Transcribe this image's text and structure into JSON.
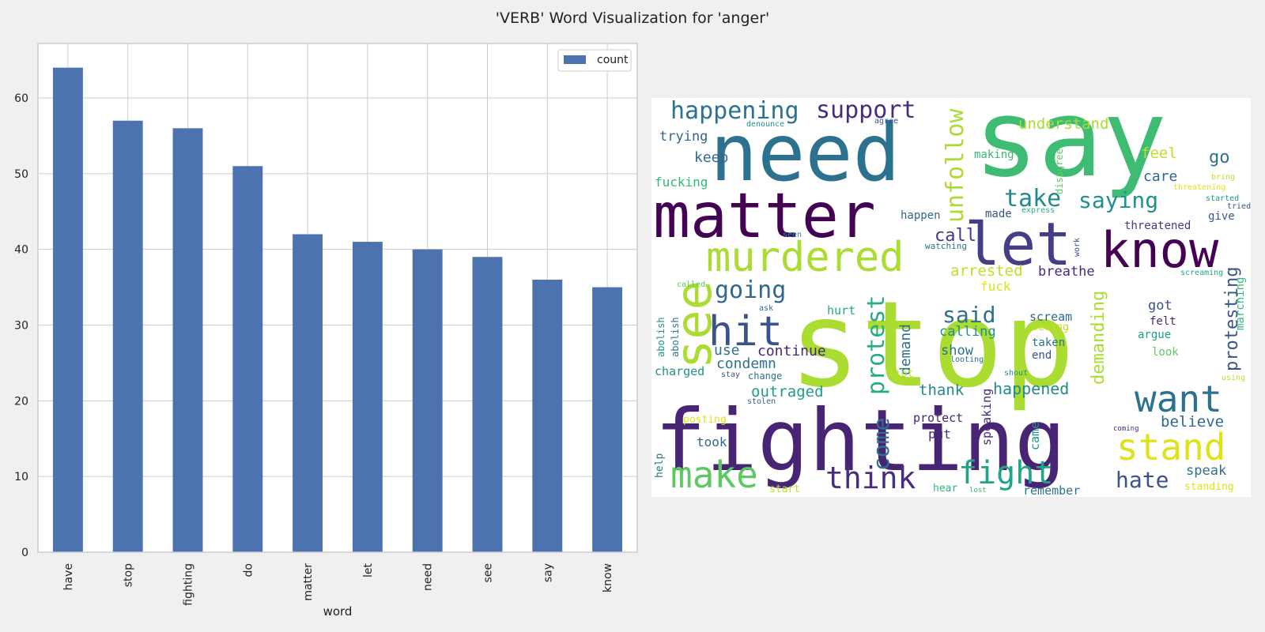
{
  "figure_title": "'VERB' Word Visualization for 'anger'",
  "chart_data": [
    {
      "type": "bar",
      "title": "",
      "xlabel": "word",
      "ylabel": "",
      "categories": [
        "have",
        "stop",
        "fighting",
        "do",
        "matter",
        "let",
        "need",
        "see",
        "say",
        "know"
      ],
      "series": [
        {
          "name": "count",
          "values": [
            64,
            57,
            56,
            51,
            42,
            41,
            40,
            39,
            36,
            35
          ],
          "color": "#4c72b0"
        }
      ],
      "ylim": [
        0,
        67.2
      ],
      "yticks": [
        0,
        10,
        20,
        30,
        40,
        50,
        60
      ],
      "grid": true,
      "legend": "top-right"
    },
    {
      "type": "wordcloud",
      "colormap": "viridis",
      "background": "#ffffff",
      "words": [
        {
          "text": "stop",
          "size": 150,
          "color": "#aadc32",
          "rank": 1
        },
        {
          "text": "say",
          "size": 135,
          "color": "#3fbc73",
          "rank": 2
        },
        {
          "text": "fighting",
          "size": 108,
          "color": "#482475",
          "rank": 3
        },
        {
          "text": "need",
          "size": 100,
          "color": "#2c728e",
          "rank": 4
        },
        {
          "text": "matter",
          "size": 78,
          "color": "#440154",
          "rank": 5
        },
        {
          "text": "let",
          "size": 75,
          "color": "#433e85",
          "rank": 6
        },
        {
          "text": "know",
          "size": 62,
          "color": "#440154",
          "rank": 7
        },
        {
          "text": "see",
          "size": 62,
          "color": "#aadc32",
          "rank": 8
        },
        {
          "text": "murdered",
          "size": 52,
          "color": "#aadc32",
          "rank": 9
        },
        {
          "text": "want",
          "size": 46,
          "color": "#2c728e",
          "rank": 10
        },
        {
          "text": "stand",
          "size": 46,
          "color": "#dde318",
          "rank": 11
        },
        {
          "text": "make",
          "size": 46,
          "color": "#5ec962",
          "rank": 12
        },
        {
          "text": "hit",
          "size": 52,
          "color": "#3b528b",
          "rank": 13
        },
        {
          "text": "think",
          "size": 38,
          "color": "#472d7b",
          "rank": 14
        },
        {
          "text": "fight",
          "size": 40,
          "color": "#20a386",
          "rank": 15
        },
        {
          "text": "unfollow",
          "size": 30,
          "color": "#aadc32",
          "rank": 16
        },
        {
          "text": "happening",
          "size": 30,
          "color": "#2c728e",
          "rank": 17
        },
        {
          "text": "support",
          "size": 30,
          "color": "#472d7b",
          "rank": 18
        },
        {
          "text": "protest",
          "size": 30,
          "color": "#27ad81",
          "rank": 19
        },
        {
          "text": "take",
          "size": 30,
          "color": "#23898e",
          "rank": 20
        },
        {
          "text": "going",
          "size": 30,
          "color": "#31688e",
          "rank": 21
        },
        {
          "text": "saying",
          "size": 28,
          "color": "#21918c",
          "rank": 22
        },
        {
          "text": "said",
          "size": 28,
          "color": "#2c728e",
          "rank": 23
        },
        {
          "text": "come",
          "size": 28,
          "color": "#2c728e",
          "rank": 24
        },
        {
          "text": "hate",
          "size": 28,
          "color": "#3b528b",
          "rank": 25
        },
        {
          "text": "demanding",
          "size": 22,
          "color": "#aadc32",
          "rank": 26
        },
        {
          "text": "protesting",
          "size": 22,
          "color": "#3b528b",
          "rank": 27
        },
        {
          "text": "call",
          "size": 22,
          "color": "#443983",
          "rank": 28
        },
        {
          "text": "understand",
          "size": 19,
          "color": "#aadc32",
          "rank": 29
        },
        {
          "text": "happened",
          "size": 20,
          "color": "#23898e",
          "rank": 30
        },
        {
          "text": "outraged",
          "size": 19,
          "color": "#1f9e89",
          "rank": 31
        },
        {
          "text": "continue",
          "size": 18,
          "color": "#482878",
          "rank": 32
        },
        {
          "text": "condemn",
          "size": 18,
          "color": "#2c728e",
          "rank": 33
        },
        {
          "text": "arrested",
          "size": 19,
          "color": "#bddf26",
          "rank": 34
        },
        {
          "text": "breathe",
          "size": 17,
          "color": "#472c7a",
          "rank": 35
        },
        {
          "text": "demand",
          "size": 18,
          "color": "#2c728e",
          "rank": 36
        },
        {
          "text": "believe",
          "size": 19,
          "color": "#31688e",
          "rank": 37
        },
        {
          "text": "thank",
          "size": 19,
          "color": "#23898e",
          "rank": 38
        },
        {
          "text": "feel",
          "size": 19,
          "color": "#bddf26",
          "rank": 39
        },
        {
          "text": "care",
          "size": 18,
          "color": "#31688e",
          "rank": 40
        },
        {
          "text": "go",
          "size": 22,
          "color": "#2c728e",
          "rank": 41
        },
        {
          "text": "use",
          "size": 18,
          "color": "#2c728e",
          "rank": 42
        },
        {
          "text": "keep",
          "size": 18,
          "color": "#31688e",
          "rank": 43
        },
        {
          "text": "trying",
          "size": 17,
          "color": "#31688e",
          "rank": 44
        },
        {
          "text": "calling",
          "size": 17,
          "color": "#21918c",
          "rank": 45
        },
        {
          "text": "show",
          "size": 17,
          "color": "#2c728e",
          "rank": 46
        },
        {
          "text": "scream",
          "size": 15,
          "color": "#31688e",
          "rank": 47
        },
        {
          "text": "got",
          "size": 17,
          "color": "#3b528b",
          "rank": 48
        },
        {
          "text": "speaking",
          "size": 15,
          "color": "#482878",
          "rank": 49
        },
        {
          "text": "came",
          "size": 15,
          "color": "#21918c",
          "rank": 50
        },
        {
          "text": "protect",
          "size": 15,
          "color": "#482475",
          "rank": 51
        },
        {
          "text": "put",
          "size": 16,
          "color": "#472d7b",
          "rank": 52
        },
        {
          "text": "took",
          "size": 16,
          "color": "#31688e",
          "rank": 53
        },
        {
          "text": "speak",
          "size": 17,
          "color": "#2c728e",
          "rank": 54
        },
        {
          "text": "remember",
          "size": 15,
          "color": "#2c728e",
          "rank": 55
        },
        {
          "text": "fucking",
          "size": 16,
          "color": "#35b779",
          "rank": 56
        },
        {
          "text": "fuck",
          "size": 16,
          "color": "#dde318",
          "rank": 57
        },
        {
          "text": "hurt",
          "size": 15,
          "color": "#27ad81",
          "rank": 58
        },
        {
          "text": "charged",
          "size": 15,
          "color": "#21918c",
          "rank": 59
        },
        {
          "text": "made",
          "size": 14,
          "color": "#3b528b",
          "rank": 60
        },
        {
          "text": "happen",
          "size": 14,
          "color": "#31688e",
          "rank": 61
        },
        {
          "text": "threatened",
          "size": 14,
          "color": "#443983",
          "rank": 62
        },
        {
          "text": "give",
          "size": 14,
          "color": "#3b528b",
          "rank": 63
        },
        {
          "text": "making",
          "size": 14,
          "color": "#35b779",
          "rank": 64
        },
        {
          "text": "marching",
          "size": 14,
          "color": "#35b779",
          "rank": 65
        },
        {
          "text": "argue",
          "size": 14,
          "color": "#1f9e89",
          "rank": 66
        },
        {
          "text": "felt",
          "size": 14,
          "color": "#482878",
          "rank": 67
        },
        {
          "text": "taken",
          "size": 14,
          "color": "#2c728e",
          "rank": 68
        },
        {
          "text": "end",
          "size": 14,
          "color": "#3b528b",
          "rank": 69
        },
        {
          "text": "look",
          "size": 14,
          "color": "#5ec962",
          "rank": 70
        },
        {
          "text": "seeing",
          "size": 13,
          "color": "#bddf26",
          "rank": 71
        },
        {
          "text": "help",
          "size": 13,
          "color": "#2c728e",
          "rank": 72
        },
        {
          "text": "hear",
          "size": 13,
          "color": "#35b779",
          "rank": 73
        },
        {
          "text": "start",
          "size": 13,
          "color": "#bddf26",
          "rank": 74
        },
        {
          "text": "standing",
          "size": 13,
          "color": "#dde318",
          "rank": 75
        },
        {
          "text": "posting",
          "size": 13,
          "color": "#dde318",
          "rank": 76
        },
        {
          "text": "riot",
          "size": 13,
          "color": "#bddf26",
          "rank": 77
        },
        {
          "text": "change",
          "size": 12,
          "color": "#2c728e",
          "rank": 78
        },
        {
          "text": "disagree",
          "size": 12,
          "color": "#5ec962",
          "rank": 79
        },
        {
          "text": "abolish",
          "size": 12,
          "color": "#21918c",
          "rank": 80
        },
        {
          "text": "abolish",
          "size": 12,
          "color": "#2c728e",
          "rank": 81
        },
        {
          "text": "stay",
          "size": 10,
          "color": "#3b528b",
          "rank": 82
        },
        {
          "text": "looting",
          "size": 10,
          "color": "#31688e",
          "rank": 83
        },
        {
          "text": "shout",
          "size": 10,
          "color": "#21918c",
          "rank": 84
        },
        {
          "text": "using",
          "size": 10,
          "color": "#bddf26",
          "rank": 85
        },
        {
          "text": "coming",
          "size": 9,
          "color": "#482878",
          "rank": 86
        },
        {
          "text": "lost",
          "size": 9,
          "color": "#35b779",
          "rank": 87
        },
        {
          "text": "stolen",
          "size": 10,
          "color": "#31688e",
          "rank": 88
        },
        {
          "text": "ask",
          "size": 10,
          "color": "#31688e",
          "rank": 89
        },
        {
          "text": "called",
          "size": 10,
          "color": "#5ec962",
          "rank": 90
        },
        {
          "text": "seen",
          "size": 10,
          "color": "#21918c",
          "rank": 91
        },
        {
          "text": "watching",
          "size": 11,
          "color": "#2c728e",
          "rank": 92
        },
        {
          "text": "work",
          "size": 10,
          "color": "#3b528b",
          "rank": 93
        },
        {
          "text": "screaming",
          "size": 10,
          "color": "#20a386",
          "rank": 94
        },
        {
          "text": "express",
          "size": 10,
          "color": "#27ad81",
          "rank": 95
        },
        {
          "text": "tried",
          "size": 10,
          "color": "#3b528b",
          "rank": 96
        },
        {
          "text": "started",
          "size": 10,
          "color": "#21918c",
          "rank": 97
        },
        {
          "text": "bring",
          "size": 10,
          "color": "#bddf26",
          "rank": 98
        },
        {
          "text": "threatening",
          "size": 10,
          "color": "#dde318",
          "rank": 99
        },
        {
          "text": "denounce",
          "size": 10,
          "color": "#21918c",
          "rank": 100
        },
        {
          "text": "agree",
          "size": 10,
          "color": "#3b528b",
          "rank": 101
        }
      ]
    }
  ]
}
